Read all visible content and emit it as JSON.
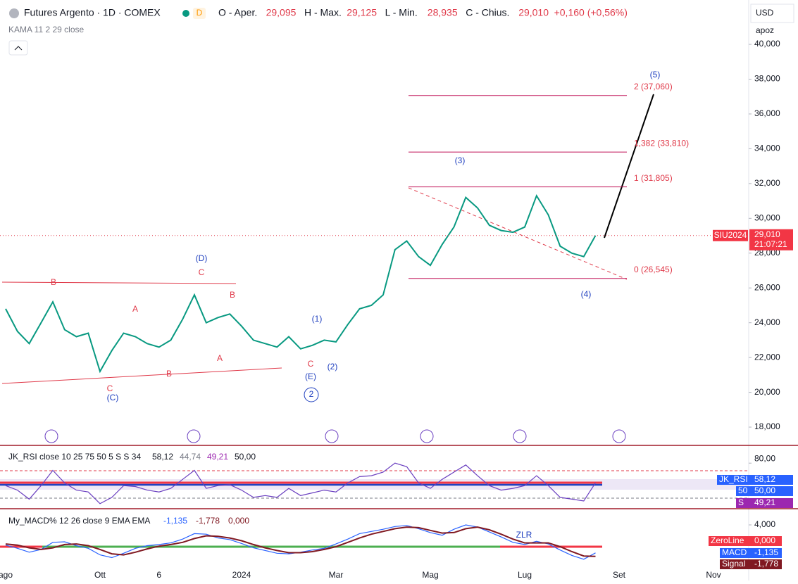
{
  "header": {
    "title": "Futures Argento · 1D · COMEX",
    "market_badge": "D",
    "ohlc": {
      "labels": [
        "O - Aper.",
        "H - Max.",
        "L - Min.",
        "C - Chius."
      ],
      "values": [
        29.095,
        29.125,
        28.935,
        29.01
      ],
      "value_labels": [
        "29,095",
        "29,125",
        "28,935",
        "29,010"
      ]
    },
    "change": "+0,160 (+0,56%)",
    "indicator": "KAMA 11 2 29 close",
    "currency": "USD",
    "scale_mode": "apoz",
    "symbol_badge": "SIU2024",
    "countdown": "21:07:21"
  },
  "chart_data": {
    "type": "line",
    "color": "#089981",
    "categories": [
      "ago",
      null,
      null,
      null,
      null,
      null,
      null,
      null,
      "Ott",
      null,
      null,
      null,
      null,
      "6",
      null,
      null,
      null,
      null,
      null,
      null,
      "2024",
      null,
      null,
      null,
      null,
      null,
      null,
      null,
      "Mar",
      null,
      null,
      null,
      null,
      null,
      null,
      null,
      "Mag",
      null,
      null,
      null,
      null,
      null,
      null,
      null,
      "Lug",
      null,
      null,
      null,
      null,
      null,
      null,
      null,
      "Set",
      null,
      null,
      null,
      null,
      null,
      null,
      null,
      "Nov",
      null
    ],
    "values": [
      24.8,
      23.5,
      22.8,
      24.0,
      25.2,
      23.6,
      23.2,
      23.4,
      21.2,
      22.4,
      23.4,
      23.2,
      22.8,
      22.6,
      23.0,
      24.2,
      25.6,
      24.0,
      24.3,
      24.5,
      23.8,
      23.0,
      22.8,
      22.6,
      23.2,
      22.5,
      22.7,
      23.0,
      22.9,
      23.9,
      24.8,
      25.0,
      25.6,
      28.2,
      28.7,
      27.8,
      27.3,
      28.5,
      29.5,
      31.2,
      30.6,
      29.6,
      29.3,
      29.2,
      29.5,
      31.3,
      30.2,
      28.4,
      28.0,
      27.8,
      29.01,
      null,
      null,
      null,
      null,
      null,
      null,
      null,
      null,
      null,
      null,
      null
    ],
    "ylim": [
      16.95,
      42.55
    ],
    "yticks": [
      {
        "value": 18,
        "label": "18,000"
      },
      {
        "value": 20,
        "label": "20,000"
      },
      {
        "value": 22,
        "label": "22,000"
      },
      {
        "value": 24,
        "label": "24,000"
      },
      {
        "value": 26,
        "label": "26,000"
      },
      {
        "value": 28,
        "label": "28,000"
      },
      {
        "value": 30,
        "label": "30,000"
      },
      {
        "value": 32,
        "label": "32,000"
      },
      {
        "value": 34,
        "label": "34,000"
      },
      {
        "value": 36,
        "label": "36,000"
      },
      {
        "value": 38,
        "label": "38,000"
      },
      {
        "value": 40,
        "label": "40,000"
      }
    ],
    "fib_levels": [
      {
        "value": 37.06,
        "label": "2 (37,060)"
      },
      {
        "value": 33.81,
        "label": "1,382 (33,810)"
      },
      {
        "value": 31.805,
        "label": "1 (31,805)"
      },
      {
        "value": 26.545,
        "label": "0 (26,545)"
      }
    ],
    "annotations": [
      {
        "text": "(5)",
        "color": "#1f3fbf"
      },
      {
        "text": "(3)",
        "color": "#1f3fbf"
      },
      {
        "text": "(4)",
        "color": "#1f3fbf"
      },
      {
        "text": "(D)",
        "color": "#1f3fbf"
      },
      {
        "text": "C",
        "color": "#e03a4a"
      },
      {
        "text": "B",
        "color": "#e03a4a"
      },
      {
        "text": "A",
        "color": "#e03a4a"
      },
      {
        "text": "B",
        "color": "#e03a4a"
      },
      {
        "text": "A",
        "color": "#e03a4a"
      },
      {
        "text": "B",
        "color": "#e03a4a"
      },
      {
        "text": "C",
        "color": "#e03a4a"
      },
      {
        "text": "(C)",
        "color": "#1f3fbf"
      },
      {
        "text": "(1)",
        "color": "#1f3fbf"
      },
      {
        "text": "C",
        "color": "#e03a4a"
      },
      {
        "text": "(2)",
        "color": "#1f3fbf"
      },
      {
        "text": "(E)",
        "color": "#1f3fbf"
      },
      {
        "text": "2",
        "color": "#1f3fbf"
      }
    ]
  },
  "rsi": {
    "title": "JK_RSI close 10 25 75 50 5 S S 34",
    "readouts": [
      "58,12",
      "44,74",
      "49,21",
      "50,00"
    ],
    "badges": [
      "JK_RSI",
      "50",
      "S"
    ],
    "color": "#6a3fc0",
    "ylim": [
      29.4,
      99.7
    ],
    "yticks": [
      {
        "value": 80,
        "label": "80,00"
      }
    ],
    "values": [
      55,
      50,
      40,
      55,
      72,
      58,
      50,
      48,
      35,
      42,
      55,
      54,
      50,
      48,
      52,
      62,
      72,
      52,
      55,
      56,
      50,
      42,
      44,
      42,
      52,
      44,
      47,
      50,
      48,
      58,
      65,
      66,
      70,
      80,
      76,
      58,
      52,
      62,
      70,
      78,
      66,
      55,
      50,
      52,
      55,
      66,
      55,
      42,
      40,
      38,
      58.12,
      null,
      null,
      null,
      null,
      null,
      null,
      null,
      null,
      null,
      null,
      null
    ]
  },
  "macd": {
    "title": "My_MACD% 12 26 close 9 EMA EMA",
    "readouts": [
      "-1,135",
      "-1,778",
      "0,000"
    ],
    "badges": [
      "ZeroLine",
      "MACD",
      "Signal"
    ],
    "annotation": "ZLR",
    "ylim": [
      -4.0,
      6.97
    ],
    "yticks": [
      {
        "value": 4,
        "label": "4,000"
      }
    ],
    "series": [
      {
        "name": "MACD",
        "color": "#2962ff",
        "values": [
          0.3,
          -0.3,
          -1.0,
          -0.5,
          0.8,
          0.9,
          0.2,
          -0.3,
          -1.5,
          -2.0,
          -1.2,
          -0.3,
          0.2,
          0.4,
          0.7,
          1.4,
          2.4,
          2.3,
          1.6,
          1.3,
          0.6,
          -0.2,
          -0.7,
          -1.2,
          -1.3,
          -1.0,
          -0.6,
          -0.3,
          0.5,
          1.4,
          2.4,
          2.8,
          3.2,
          3.7,
          3.9,
          3.3,
          2.6,
          2.1,
          3.2,
          4.0,
          3.6,
          2.7,
          1.8,
          0.8,
          0.4,
          1.0,
          0.5,
          -0.6,
          -1.6,
          -2.3,
          -1.135,
          null,
          null,
          null,
          null,
          null,
          null,
          null,
          null,
          null,
          null,
          null
        ]
      },
      {
        "name": "Signal",
        "color": "#801922",
        "values": [
          0.5,
          0.3,
          -0.2,
          -0.5,
          -0.2,
          0.4,
          0.5,
          0.2,
          -0.5,
          -1.3,
          -1.5,
          -1.0,
          -0.4,
          0.1,
          0.4,
          0.8,
          1.5,
          2.0,
          1.9,
          1.6,
          1.1,
          0.4,
          -0.2,
          -0.7,
          -1.1,
          -1.1,
          -0.9,
          -0.5,
          0.0,
          0.8,
          1.6,
          2.3,
          2.8,
          3.3,
          3.6,
          3.5,
          3.0,
          2.5,
          2.6,
          3.3,
          3.6,
          3.1,
          2.3,
          1.4,
          0.7,
          0.7,
          0.7,
          0.0,
          -0.9,
          -1.7,
          -1.778,
          null,
          null,
          null,
          null,
          null,
          null,
          null,
          null,
          null,
          null,
          null
        ]
      }
    ]
  }
}
